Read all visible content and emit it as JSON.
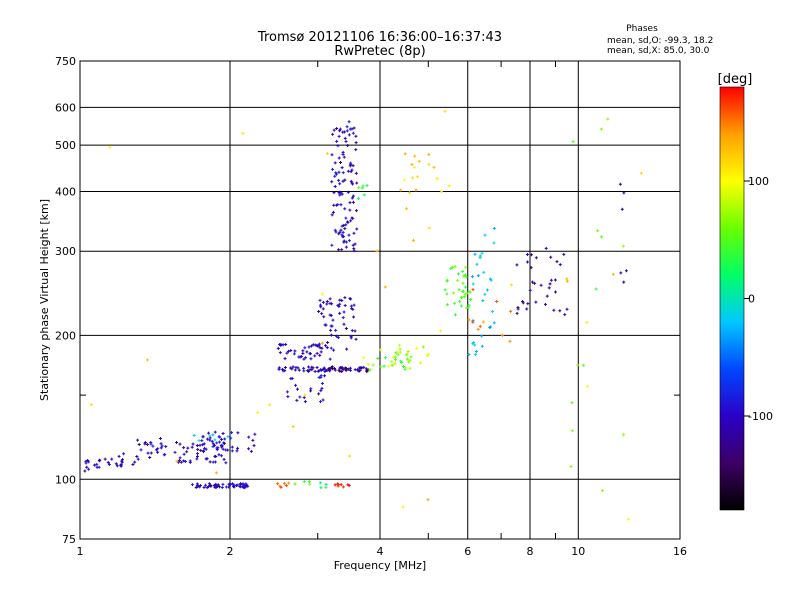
{
  "chart_data": {
    "type": "scatter",
    "title": "Tromsø 20121106 16:36:00–16:37:43",
    "subtitle": "RwPretec (8p)",
    "stats": {
      "heading": "Phases",
      "line1": "mean, sd,O:  -99.3, 18.2",
      "line2": "mean, sd,X:  85.0, 30.0"
    },
    "xlabel": "Frequency [MHz]",
    "ylabel": "Stationary phase Virtual Height [km]",
    "x_scale": "log",
    "y_scale": "log",
    "xlim": [
      1,
      16
    ],
    "ylim": [
      75,
      750
    ],
    "x_ticks": [
      1,
      2,
      4,
      6,
      8,
      10,
      16
    ],
    "x_minor_ticks": [
      3,
      5,
      7,
      9
    ],
    "y_ticks": [
      75,
      100,
      200,
      300,
      400,
      500,
      600,
      750
    ],
    "y_minor_ticks": [
      150
    ],
    "grid": true,
    "colorbar": {
      "label": "[deg]",
      "min": -180,
      "max": 180,
      "ticks": [
        100,
        0,
        -100
      ],
      "colors": [
        "#000000",
        "#3c0064",
        "#2b00c8",
        "#0047ff",
        "#00c8ff",
        "#00ff66",
        "#6aff00",
        "#ffff00",
        "#ffa000",
        "#ff0000"
      ]
    },
    "series": [
      {
        "x_range": [
          1.02,
          1.1
        ],
        "y_range": [
          104,
          110
        ],
        "phase": -100,
        "n": 14
      },
      {
        "x_range": [
          1.1,
          1.3
        ],
        "y_range": [
          106,
          114
        ],
        "phase": -105,
        "n": 16
      },
      {
        "x_range": [
          1.3,
          1.5
        ],
        "y_range": [
          110,
          122
        ],
        "phase": -100,
        "n": 24
      },
      {
        "x_range": [
          1.55,
          2.0
        ],
        "y_range": [
          108,
          120
        ],
        "phase": -100,
        "n": 50
      },
      {
        "x_range": [
          1.75,
          2.25
        ],
        "y_range": [
          114,
          126
        ],
        "phase": -95,
        "n": 34
      },
      {
        "x_range": [
          1.6,
          2.0
        ],
        "y_range": [
          118,
          124
        ],
        "phase": -20,
        "n": 6
      },
      {
        "x_range": [
          1.68,
          2.18
        ],
        "y_range": [
          96,
          98
        ],
        "phase": -100,
        "n": 55
      },
      {
        "x_range": [
          2.45,
          2.65
        ],
        "y_range": [
          96,
          99
        ],
        "phase": 160,
        "n": 6
      },
      {
        "x_range": [
          2.7,
          2.9
        ],
        "y_range": [
          96,
          99
        ],
        "phase": 40,
        "n": 4
      },
      {
        "x_range": [
          3.25,
          3.5
        ],
        "y_range": [
          96,
          99
        ],
        "phase": 170,
        "n": 8
      },
      {
        "x_range": [
          3.0,
          3.2
        ],
        "y_range": [
          96,
          99
        ],
        "phase": 20,
        "n": 4
      },
      {
        "x_range": [
          2.5,
          3.8
        ],
        "y_range": [
          168,
          172
        ],
        "phase": -100,
        "n": 60
      },
      {
        "x_range": [
          3.1,
          3.8
        ],
        "y_range": [
          168,
          172
        ],
        "phase": -140,
        "n": 20
      },
      {
        "x_range": [
          2.5,
          3.2
        ],
        "y_range": [
          178,
          192
        ],
        "phase": -100,
        "n": 40
      },
      {
        "x_range": [
          2.6,
          3.1
        ],
        "y_range": [
          145,
          165
        ],
        "phase": -100,
        "n": 22
      },
      {
        "x_range": [
          3.0,
          3.6
        ],
        "y_range": [
          185,
          240
        ],
        "phase": -100,
        "n": 55
      },
      {
        "x_range": [
          3.2,
          3.6
        ],
        "y_range": [
          300,
          560
        ],
        "phase": -100,
        "n": 110
      },
      {
        "x_range": [
          3.6,
          3.8
        ],
        "y_range": [
          380,
          420
        ],
        "phase": 40,
        "n": 6
      },
      {
        "x_range": [
          3.8,
          4.6
        ],
        "y_range": [
          168,
          185
        ],
        "phase": 50,
        "n": 18
      },
      {
        "x_range": [
          3.7,
          5.4
        ],
        "y_range": [
          170,
          192
        ],
        "phase": 80,
        "n": 24
      },
      {
        "x_range": [
          4.4,
          5.6
        ],
        "y_range": [
          330,
          480
        ],
        "phase": 120,
        "n": 18
      },
      {
        "x_range": [
          5.4,
          6.1
        ],
        "y_range": [
          220,
          280
        ],
        "phase": 50,
        "n": 36
      },
      {
        "x_range": [
          6.0,
          6.8
        ],
        "y_range": [
          180,
          340
        ],
        "phase": -20,
        "n": 30
      },
      {
        "x_range": [
          7.5,
          9.5
        ],
        "y_range": [
          220,
          310
        ],
        "phase": -120,
        "n": 34
      },
      {
        "x_range": [
          6.0,
          7.5
        ],
        "y_range": [
          190,
          260
        ],
        "phase": 150,
        "n": 10
      },
      {
        "x_range": [
          9.5,
          12.5
        ],
        "y_range": [
          80,
          600
        ],
        "phase": 60,
        "n": 14
      },
      {
        "x_range": [
          11.5,
          12.5
        ],
        "y_range": [
          250,
          430
        ],
        "phase": -130,
        "n": 6
      },
      {
        "x_range": [
          1.0,
          15.5
        ],
        "y_range": [
          80,
          600
        ],
        "phase": 120,
        "n": 30
      }
    ]
  }
}
